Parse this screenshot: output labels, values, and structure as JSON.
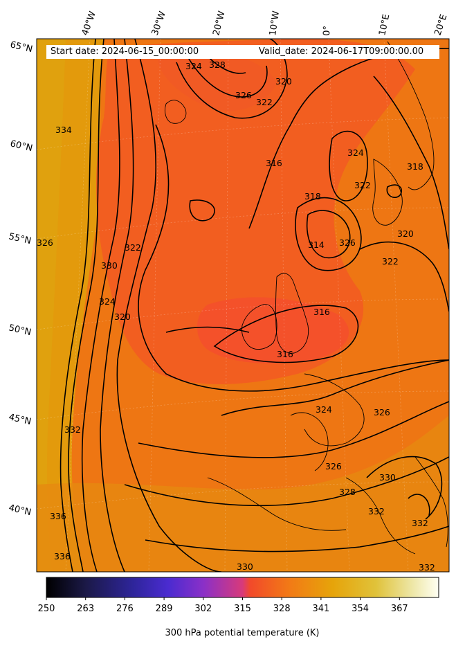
{
  "header": {
    "start_date": "Start date: 2024-06-15_00:00:00",
    "valid_date": "Valid_date: 2024-06-17T09:00:00.00"
  },
  "map": {
    "longitude_labels": [
      "40°W",
      "30°W",
      "20°W",
      "10°W",
      "0°",
      "10°E",
      "20°E"
    ],
    "latitude_labels": [
      "65°N",
      "60°N",
      "55°N",
      "50°N",
      "45°N",
      "40°N"
    ],
    "contour_labels": [
      "324",
      "328",
      "326",
      "322",
      "320",
      "334",
      "316",
      "324",
      "322",
      "318",
      "318",
      "314",
      "326",
      "320",
      "322",
      "322",
      "330",
      "324",
      "320",
      "316",
      "316",
      "332",
      "324",
      "326",
      "326",
      "330",
      "328",
      "332",
      "332",
      "336",
      "336",
      "330",
      "332",
      "326"
    ],
    "colors": {
      "warm_west": "#e39a0c",
      "mid_orange": "#ee7613",
      "core_red": "#f35a22",
      "contour": "#000000"
    }
  },
  "colorbar": {
    "label": "300 hPa potential temperature (K)",
    "ticks": [
      "250",
      "263",
      "276",
      "289",
      "302",
      "315",
      "328",
      "341",
      "354",
      "367"
    ],
    "min": 250,
    "max": 380,
    "colormap": [
      "#000000",
      "#1b1947",
      "#3a22a0",
      "#6c2ecf",
      "#a12fb8",
      "#f04528",
      "#f4731a",
      "#e6a40a",
      "#e0c23a",
      "#ede6a4",
      "#fffff2"
    ]
  }
}
